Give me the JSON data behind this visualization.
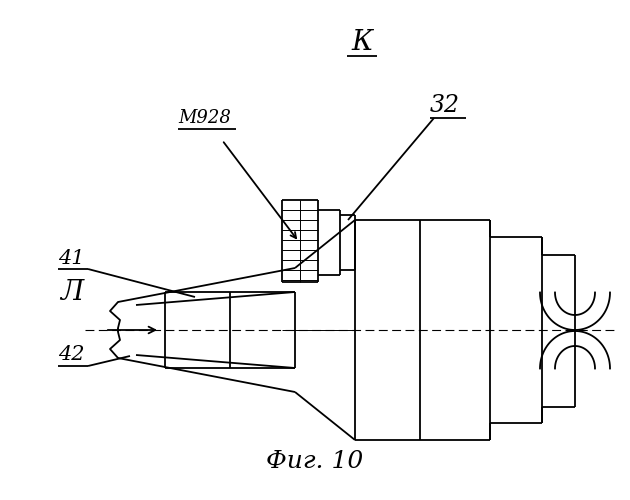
{
  "title": "Фиг. 10",
  "label_K": "К",
  "label_L": "Л",
  "label_32": "32",
  "label_M928": "М928",
  "label_41": "41",
  "label_42": "42",
  "bg_color": "#ffffff",
  "line_color": "#000000",
  "fig_width": 6.3,
  "fig_height": 5.0,
  "dpi": 100
}
